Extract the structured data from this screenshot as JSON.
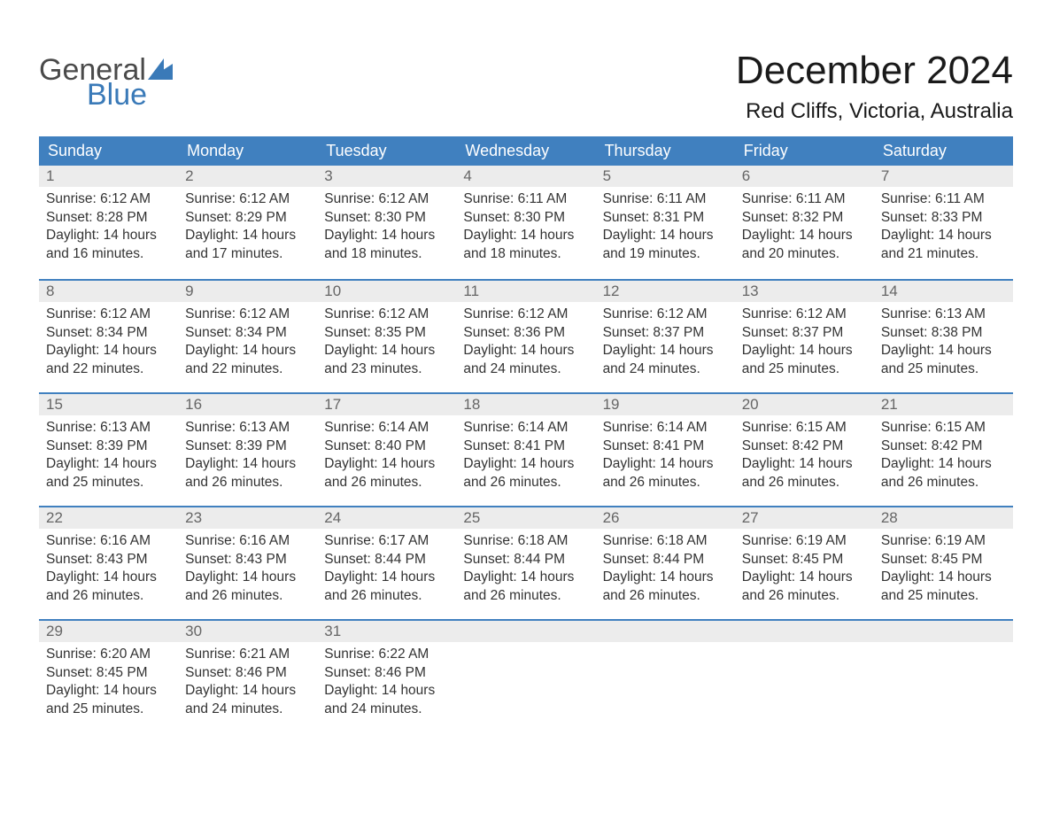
{
  "brand": {
    "word1": "General",
    "word2": "Blue",
    "word1_color": "#4a4a4a",
    "word2_color": "#3a7ab8",
    "sail_color": "#3a7ab8"
  },
  "title": "December 2024",
  "location": "Red Cliffs, Victoria, Australia",
  "colors": {
    "header_bg": "#4080bf",
    "header_text": "#ffffff",
    "daynum_bg": "#ececec",
    "daynum_text": "#666666",
    "row_border": "#4080bf",
    "body_text": "#333333",
    "page_bg": "#ffffff"
  },
  "day_headers": [
    "Sunday",
    "Monday",
    "Tuesday",
    "Wednesday",
    "Thursday",
    "Friday",
    "Saturday"
  ],
  "weeks": [
    [
      {
        "n": "1",
        "sunrise": "Sunrise: 6:12 AM",
        "sunset": "Sunset: 8:28 PM",
        "d1": "Daylight: 14 hours",
        "d2": "and 16 minutes."
      },
      {
        "n": "2",
        "sunrise": "Sunrise: 6:12 AM",
        "sunset": "Sunset: 8:29 PM",
        "d1": "Daylight: 14 hours",
        "d2": "and 17 minutes."
      },
      {
        "n": "3",
        "sunrise": "Sunrise: 6:12 AM",
        "sunset": "Sunset: 8:30 PM",
        "d1": "Daylight: 14 hours",
        "d2": "and 18 minutes."
      },
      {
        "n": "4",
        "sunrise": "Sunrise: 6:11 AM",
        "sunset": "Sunset: 8:30 PM",
        "d1": "Daylight: 14 hours",
        "d2": "and 18 minutes."
      },
      {
        "n": "5",
        "sunrise": "Sunrise: 6:11 AM",
        "sunset": "Sunset: 8:31 PM",
        "d1": "Daylight: 14 hours",
        "d2": "and 19 minutes."
      },
      {
        "n": "6",
        "sunrise": "Sunrise: 6:11 AM",
        "sunset": "Sunset: 8:32 PM",
        "d1": "Daylight: 14 hours",
        "d2": "and 20 minutes."
      },
      {
        "n": "7",
        "sunrise": "Sunrise: 6:11 AM",
        "sunset": "Sunset: 8:33 PM",
        "d1": "Daylight: 14 hours",
        "d2": "and 21 minutes."
      }
    ],
    [
      {
        "n": "8",
        "sunrise": "Sunrise: 6:12 AM",
        "sunset": "Sunset: 8:34 PM",
        "d1": "Daylight: 14 hours",
        "d2": "and 22 minutes."
      },
      {
        "n": "9",
        "sunrise": "Sunrise: 6:12 AM",
        "sunset": "Sunset: 8:34 PM",
        "d1": "Daylight: 14 hours",
        "d2": "and 22 minutes."
      },
      {
        "n": "10",
        "sunrise": "Sunrise: 6:12 AM",
        "sunset": "Sunset: 8:35 PM",
        "d1": "Daylight: 14 hours",
        "d2": "and 23 minutes."
      },
      {
        "n": "11",
        "sunrise": "Sunrise: 6:12 AM",
        "sunset": "Sunset: 8:36 PM",
        "d1": "Daylight: 14 hours",
        "d2": "and 24 minutes."
      },
      {
        "n": "12",
        "sunrise": "Sunrise: 6:12 AM",
        "sunset": "Sunset: 8:37 PM",
        "d1": "Daylight: 14 hours",
        "d2": "and 24 minutes."
      },
      {
        "n": "13",
        "sunrise": "Sunrise: 6:12 AM",
        "sunset": "Sunset: 8:37 PM",
        "d1": "Daylight: 14 hours",
        "d2": "and 25 minutes."
      },
      {
        "n": "14",
        "sunrise": "Sunrise: 6:13 AM",
        "sunset": "Sunset: 8:38 PM",
        "d1": "Daylight: 14 hours",
        "d2": "and 25 minutes."
      }
    ],
    [
      {
        "n": "15",
        "sunrise": "Sunrise: 6:13 AM",
        "sunset": "Sunset: 8:39 PM",
        "d1": "Daylight: 14 hours",
        "d2": "and 25 minutes."
      },
      {
        "n": "16",
        "sunrise": "Sunrise: 6:13 AM",
        "sunset": "Sunset: 8:39 PM",
        "d1": "Daylight: 14 hours",
        "d2": "and 26 minutes."
      },
      {
        "n": "17",
        "sunrise": "Sunrise: 6:14 AM",
        "sunset": "Sunset: 8:40 PM",
        "d1": "Daylight: 14 hours",
        "d2": "and 26 minutes."
      },
      {
        "n": "18",
        "sunrise": "Sunrise: 6:14 AM",
        "sunset": "Sunset: 8:41 PM",
        "d1": "Daylight: 14 hours",
        "d2": "and 26 minutes."
      },
      {
        "n": "19",
        "sunrise": "Sunrise: 6:14 AM",
        "sunset": "Sunset: 8:41 PM",
        "d1": "Daylight: 14 hours",
        "d2": "and 26 minutes."
      },
      {
        "n": "20",
        "sunrise": "Sunrise: 6:15 AM",
        "sunset": "Sunset: 8:42 PM",
        "d1": "Daylight: 14 hours",
        "d2": "and 26 minutes."
      },
      {
        "n": "21",
        "sunrise": "Sunrise: 6:15 AM",
        "sunset": "Sunset: 8:42 PM",
        "d1": "Daylight: 14 hours",
        "d2": "and 26 minutes."
      }
    ],
    [
      {
        "n": "22",
        "sunrise": "Sunrise: 6:16 AM",
        "sunset": "Sunset: 8:43 PM",
        "d1": "Daylight: 14 hours",
        "d2": "and 26 minutes."
      },
      {
        "n": "23",
        "sunrise": "Sunrise: 6:16 AM",
        "sunset": "Sunset: 8:43 PM",
        "d1": "Daylight: 14 hours",
        "d2": "and 26 minutes."
      },
      {
        "n": "24",
        "sunrise": "Sunrise: 6:17 AM",
        "sunset": "Sunset: 8:44 PM",
        "d1": "Daylight: 14 hours",
        "d2": "and 26 minutes."
      },
      {
        "n": "25",
        "sunrise": "Sunrise: 6:18 AM",
        "sunset": "Sunset: 8:44 PM",
        "d1": "Daylight: 14 hours",
        "d2": "and 26 minutes."
      },
      {
        "n": "26",
        "sunrise": "Sunrise: 6:18 AM",
        "sunset": "Sunset: 8:44 PM",
        "d1": "Daylight: 14 hours",
        "d2": "and 26 minutes."
      },
      {
        "n": "27",
        "sunrise": "Sunrise: 6:19 AM",
        "sunset": "Sunset: 8:45 PM",
        "d1": "Daylight: 14 hours",
        "d2": "and 26 minutes."
      },
      {
        "n": "28",
        "sunrise": "Sunrise: 6:19 AM",
        "sunset": "Sunset: 8:45 PM",
        "d1": "Daylight: 14 hours",
        "d2": "and 25 minutes."
      }
    ],
    [
      {
        "n": "29",
        "sunrise": "Sunrise: 6:20 AM",
        "sunset": "Sunset: 8:45 PM",
        "d1": "Daylight: 14 hours",
        "d2": "and 25 minutes."
      },
      {
        "n": "30",
        "sunrise": "Sunrise: 6:21 AM",
        "sunset": "Sunset: 8:46 PM",
        "d1": "Daylight: 14 hours",
        "d2": "and 24 minutes."
      },
      {
        "n": "31",
        "sunrise": "Sunrise: 6:22 AM",
        "sunset": "Sunset: 8:46 PM",
        "d1": "Daylight: 14 hours",
        "d2": "and 24 minutes."
      },
      null,
      null,
      null,
      null
    ]
  ]
}
